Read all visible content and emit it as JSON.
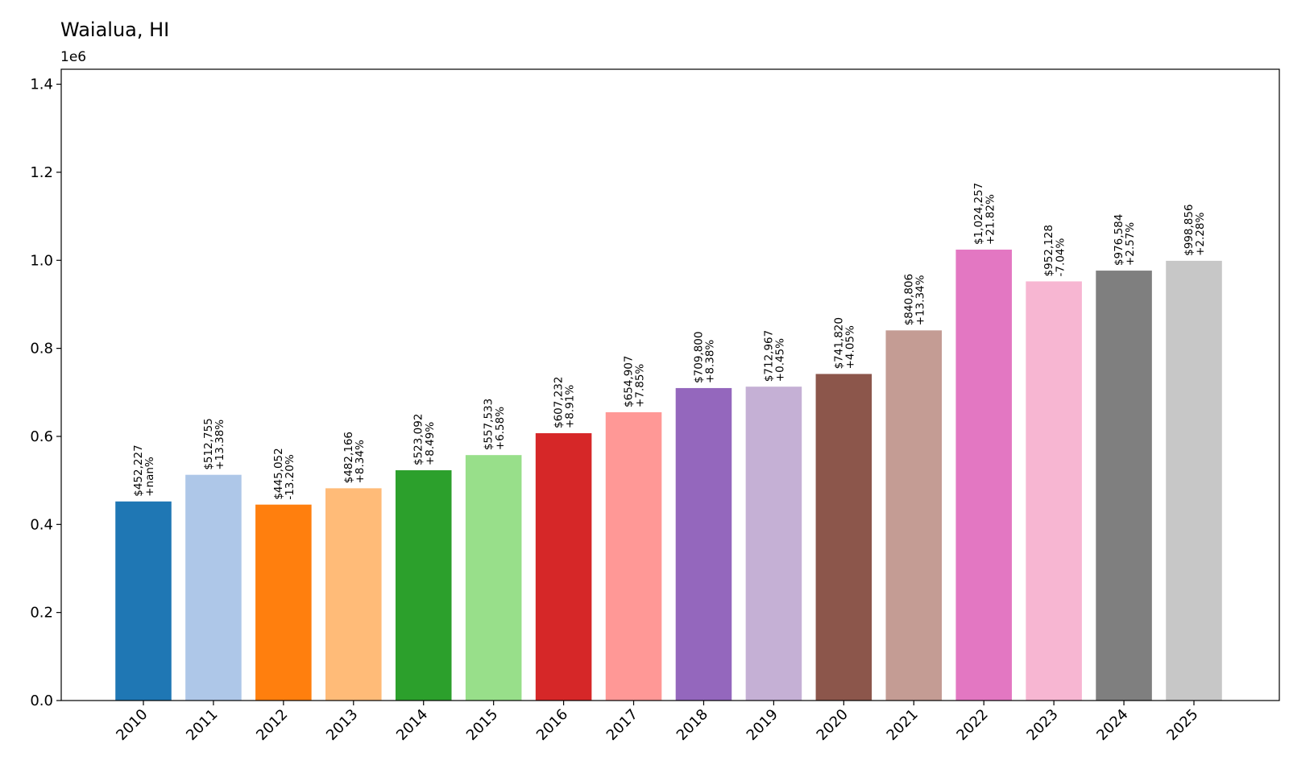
{
  "chart_data": {
    "type": "bar",
    "title": "Waialua, HI",
    "y_offset_label": "1e6",
    "xlabel": "",
    "ylabel": "",
    "ylim": [
      0,
      1434000
    ],
    "yticks": [
      0,
      200000,
      400000,
      600000,
      800000,
      1000000,
      1200000,
      1400000
    ],
    "ytick_labels": [
      "0.0",
      "0.2",
      "0.4",
      "0.6",
      "0.8",
      "1.0",
      "1.2",
      "1.4"
    ],
    "grid": false,
    "legend": "none",
    "categories": [
      "2010",
      "2011",
      "2012",
      "2013",
      "2014",
      "2015",
      "2016",
      "2017",
      "2018",
      "2019",
      "2020",
      "2021",
      "2022",
      "2023",
      "2024",
      "2025"
    ],
    "values": [
      452227,
      512755,
      445052,
      482166,
      523092,
      557533,
      607232,
      654907,
      709800,
      712967,
      741820,
      840806,
      1024257,
      952128,
      976584,
      998856
    ],
    "value_labels": [
      "$452,227",
      "$512,755",
      "$445,052",
      "$482,166",
      "$523,092",
      "$557,533",
      "$607,232",
      "$654,907",
      "$709,800",
      "$712,967",
      "$741,820",
      "$840,806",
      "$1,024,257",
      "$952,128",
      "$976,584",
      "$998,856"
    ],
    "change_labels": [
      "+nan%",
      "+13.38%",
      "-13.20%",
      "+8.34%",
      "+8.49%",
      "+6.58%",
      "+8.91%",
      "+7.85%",
      "+8.38%",
      "+0.45%",
      "+4.05%",
      "+13.34%",
      "+21.82%",
      "-7.04%",
      "+2.57%",
      "+2.28%"
    ],
    "colors": [
      "#1f77b4",
      "#aec7e8",
      "#ff7f0e",
      "#ffbb78",
      "#2ca02c",
      "#98df8a",
      "#d62728",
      "#ff9896",
      "#9467bd",
      "#c5b0d5",
      "#8c564b",
      "#c49c94",
      "#e377c2",
      "#f7b6d2",
      "#7f7f7f",
      "#c7c7c7"
    ]
  }
}
